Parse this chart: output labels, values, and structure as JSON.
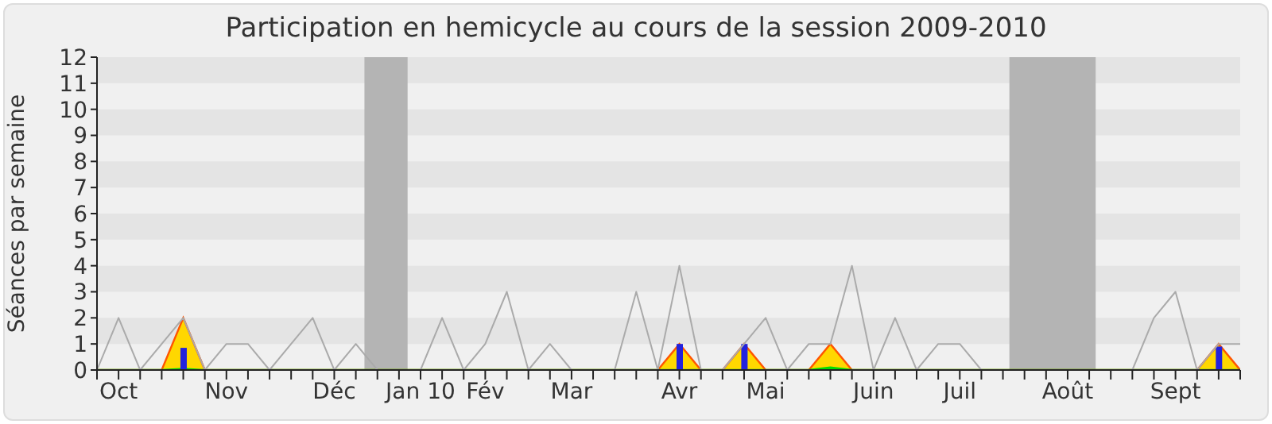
{
  "chart_data": {
    "type": "line",
    "title": "Participation en hemicycle au cours de la session 2009-2010",
    "ylabel": "Séances par semaine",
    "categories": [
      null,
      "Oct",
      null,
      null,
      null,
      null,
      "Nov",
      null,
      null,
      null,
      null,
      "Déc",
      null,
      null,
      null,
      "Jan 10",
      null,
      null,
      "Fév",
      null,
      null,
      null,
      "Mar",
      null,
      null,
      null,
      null,
      "Avr",
      null,
      null,
      null,
      "Mai",
      null,
      null,
      null,
      null,
      "Juin",
      null,
      null,
      null,
      "Juil",
      null,
      null,
      null,
      null,
      "Août",
      null,
      null,
      null,
      null,
      "Sept",
      null,
      null,
      null
    ],
    "ylim": [
      0,
      12
    ],
    "yticks": [
      0,
      1,
      2,
      3,
      4,
      5,
      6,
      7,
      8,
      9,
      10,
      11,
      12
    ],
    "marker": "none",
    "series": [
      {
        "color": "#aaaaaa",
        "values": [
          0,
          2,
          0,
          1,
          2,
          0,
          1,
          1,
          0,
          1,
          2,
          0,
          1,
          0,
          null,
          0,
          2,
          0,
          1,
          3,
          0,
          1,
          0,
          0,
          0,
          3,
          0,
          4,
          0,
          0,
          1,
          2,
          0,
          1,
          1,
          4,
          0,
          2,
          0,
          1,
          1,
          0,
          0,
          null,
          null,
          null,
          null,
          0,
          0,
          2,
          3,
          0,
          1,
          1
        ]
      },
      {
        "type": "area",
        "color": "#ff5500",
        "values": [
          0,
          0,
          0,
          0,
          2,
          0,
          0,
          0,
          0,
          0,
          0,
          0,
          0,
          0,
          0,
          0,
          0,
          0,
          0,
          0,
          0,
          0,
          0,
          0,
          0,
          0,
          0,
          1,
          0,
          0,
          1,
          0,
          0,
          0,
          1,
          0,
          0,
          0,
          0,
          0,
          0,
          0,
          0,
          0,
          0,
          0,
          0,
          0,
          0,
          0,
          0,
          0,
          1,
          0
        ]
      },
      {
        "type": "area",
        "color": "#00dd00",
        "values": [
          0,
          0,
          0,
          0,
          0.05,
          0,
          0,
          0,
          0,
          0,
          0,
          0,
          0,
          0,
          0,
          0,
          0,
          0,
          0,
          0,
          0,
          0,
          0,
          0,
          0,
          0,
          0,
          0,
          0,
          0,
          0,
          0,
          0,
          0,
          0.1,
          0,
          0,
          0,
          0,
          0,
          0,
          0,
          0,
          0,
          0,
          0,
          0,
          0,
          0,
          0,
          0,
          0,
          0,
          0
        ]
      },
      {
        "type": "bar",
        "color": "#2222dd",
        "values": [
          null,
          null,
          null,
          null,
          0.85,
          null,
          null,
          null,
          null,
          null,
          null,
          null,
          null,
          null,
          null,
          null,
          null,
          null,
          null,
          null,
          null,
          null,
          null,
          null,
          null,
          null,
          null,
          1,
          null,
          null,
          1,
          null,
          null,
          null,
          null,
          null,
          null,
          null,
          null,
          null,
          null,
          null,
          null,
          null,
          null,
          null,
          null,
          null,
          null,
          null,
          null,
          null,
          0.9,
          null
        ]
      }
    ]
  }
}
